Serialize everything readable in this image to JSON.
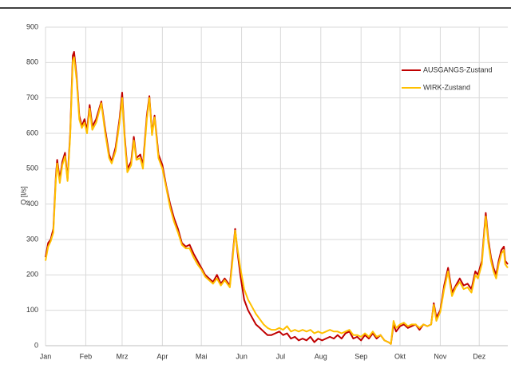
{
  "chart_data": {
    "type": "line",
    "y_label": "Q [l/s]",
    "x": [
      0,
      2,
      4,
      6,
      8,
      9,
      11,
      13,
      15,
      17,
      19,
      21,
      22,
      24,
      26,
      28,
      30,
      32,
      34,
      36,
      39,
      43,
      46,
      49,
      51,
      54,
      57,
      59,
      61,
      63,
      66,
      68,
      70,
      73,
      75,
      78,
      80,
      82,
      84,
      87,
      90,
      93,
      96,
      99,
      102,
      105,
      108,
      111,
      114,
      117,
      120,
      123,
      126,
      129,
      132,
      135,
      138,
      142,
      144,
      146,
      148,
      150,
      153,
      156,
      159,
      162,
      165,
      168,
      171,
      174,
      177,
      180,
      183,
      186,
      189,
      192,
      195,
      198,
      201,
      204,
      207,
      210,
      213,
      216,
      219,
      222,
      225,
      228,
      231,
      234,
      237,
      240,
      243,
      246,
      249,
      252,
      255,
      258,
      261,
      264,
      266,
      268,
      270,
      273,
      276,
      279,
      282,
      285,
      288,
      291,
      294,
      297,
      299,
      301,
      304,
      307,
      310,
      313,
      316,
      319,
      322,
      325,
      328,
      331,
      333,
      336,
      338,
      339,
      341,
      343,
      345,
      347,
      349,
      351,
      353,
      354,
      356
    ],
    "series": [
      {
        "name": "AUSGANGS-Zustand",
        "color": "#c00000",
        "values": [
          250,
          290,
          300,
          330,
          480,
          525,
          470,
          520,
          545,
          470,
          600,
          820,
          830,
          760,
          650,
          620,
          640,
          610,
          680,
          620,
          640,
          690,
          610,
          540,
          520,
          560,
          640,
          715,
          590,
          500,
          520,
          590,
          530,
          540,
          510,
          650,
          705,
          600,
          650,
          540,
          510,
          450,
          400,
          360,
          330,
          290,
          280,
          285,
          260,
          240,
          220,
          200,
          190,
          180,
          200,
          175,
          190,
          170,
          250,
          330,
          260,
          200,
          130,
          100,
          80,
          60,
          50,
          40,
          30,
          30,
          35,
          40,
          30,
          35,
          20,
          25,
          15,
          20,
          15,
          25,
          10,
          20,
          15,
          20,
          25,
          20,
          30,
          20,
          35,
          40,
          20,
          25,
          15,
          30,
          20,
          35,
          20,
          30,
          15,
          10,
          5,
          60,
          40,
          55,
          60,
          50,
          55,
          60,
          45,
          60,
          55,
          60,
          120,
          80,
          100,
          170,
          220,
          150,
          170,
          190,
          170,
          175,
          160,
          210,
          200,
          240,
          330,
          375,
          300,
          250,
          220,
          200,
          240,
          270,
          280,
          240,
          230
        ]
      },
      {
        "name": "WIRK-Zustand",
        "color": "#ffc000",
        "values": [
          240,
          280,
          295,
          320,
          470,
          515,
          460,
          510,
          535,
          465,
          590,
          805,
          815,
          750,
          640,
          615,
          630,
          600,
          670,
          610,
          630,
          685,
          600,
          530,
          515,
          550,
          630,
          700,
          580,
          490,
          510,
          580,
          525,
          530,
          500,
          640,
          700,
          595,
          645,
          530,
          500,
          445,
          390,
          350,
          320,
          285,
          275,
          275,
          250,
          230,
          215,
          195,
          185,
          175,
          190,
          170,
          185,
          165,
          240,
          325,
          270,
          220,
          160,
          130,
          110,
          90,
          75,
          60,
          50,
          45,
          45,
          50,
          45,
          55,
          40,
          45,
          40,
          45,
          40,
          45,
          35,
          40,
          35,
          40,
          45,
          40,
          40,
          35,
          40,
          45,
          30,
          30,
          25,
          35,
          25,
          40,
          25,
          30,
          15,
          10,
          5,
          70,
          50,
          60,
          65,
          55,
          60,
          60,
          50,
          60,
          55,
          60,
          115,
          70,
          95,
          160,
          210,
          140,
          165,
          180,
          160,
          165,
          150,
          200,
          190,
          230,
          320,
          365,
          290,
          240,
          210,
          190,
          230,
          260,
          270,
          230,
          220
        ]
      }
    ],
    "xlim": [
      0,
      356
    ],
    "xticks": [
      {
        "value": 0,
        "label": "Jan"
      },
      {
        "value": 31,
        "label": "Feb"
      },
      {
        "value": 59,
        "label": "Mrz"
      },
      {
        "value": 90,
        "label": "Apr"
      },
      {
        "value": 120,
        "label": "Mai"
      },
      {
        "value": 151,
        "label": "Jun"
      },
      {
        "value": 181,
        "label": "Jul"
      },
      {
        "value": 212,
        "label": "Aug"
      },
      {
        "value": 243,
        "label": "Sep"
      },
      {
        "value": 273,
        "label": "Okt"
      },
      {
        "value": 304,
        "label": "Nov"
      },
      {
        "value": 334,
        "label": "Dez"
      }
    ],
    "ylim": [
      0,
      900
    ],
    "yticks": [
      0,
      100,
      200,
      300,
      400,
      500,
      600,
      700,
      800,
      900
    ],
    "grid": true,
    "legend": "upper right"
  }
}
